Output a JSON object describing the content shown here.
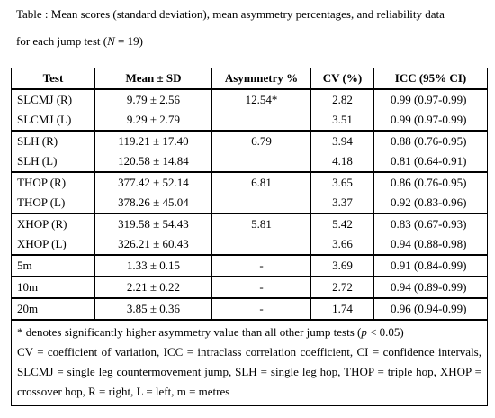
{
  "caption": {
    "line1": "Table : Mean scores (standard deviation), mean asymmetry percentages, and reliability data",
    "line2_prefix": "for each jump test (",
    "n": "N",
    "line2_suffix": " = 19)"
  },
  "table": {
    "header": [
      "Test",
      "Mean ± SD",
      "Asymmetry %",
      "CV (%)",
      "ICC (95% CI)"
    ],
    "rows": [
      [
        "SLCMJ (R)",
        "9.79 ± 2.56",
        "12.54*",
        "2.82",
        "0.99 (0.97-0.99)"
      ],
      [
        "SLCMJ (L)",
        "9.29 ± 2.79",
        null,
        "3.51",
        "0.99 (0.97-0.99)"
      ],
      [
        "SLH (R)",
        "119.21 ± 17.40",
        "6.79",
        "3.94",
        "0.88 (0.76-0.95)"
      ],
      [
        "SLH (L)",
        "120.58 ± 14.84",
        null,
        "4.18",
        "0.81 (0.64-0.91)"
      ],
      [
        "THOP (R)",
        "377.42 ± 52.14",
        "6.81",
        "3.65",
        "0.86 (0.76-0.95)"
      ],
      [
        "THOP (L)",
        "378.26 ± 45.04",
        null,
        "3.37",
        "0.92 (0.83-0.96)"
      ],
      [
        "XHOP (R)",
        "319.58 ± 54.43",
        "5.81",
        "5.42",
        "0.83 (0.67-0.93)"
      ],
      [
        "XHOP (L)",
        "326.21 ± 60.43",
        null,
        "3.66",
        "0.94 (0.88-0.98)"
      ],
      [
        "5m",
        "1.33 ± 0.15",
        "-",
        "3.69",
        "0.91 (0.84-0.99)"
      ],
      [
        "10m",
        "2.21 ± 0.22",
        "-",
        "2.72",
        "0.94 (0.89-0.99)"
      ],
      [
        "20m",
        "3.85 ± 0.36",
        "-",
        "1.74",
        "0.96 (0.94-0.99)"
      ]
    ]
  },
  "footnotes": {
    "note1_prefix": "* denotes significantly higher asymmetry value than all other jump tests (",
    "note1_p": "p",
    "note1_suffix": " < 0.05)",
    "note2": "CV = coefficient of variation, ICC = intraclass correlation coefficient, CI = confidence intervals, SLCMJ = single leg countermovement jump, SLH = single leg hop, THOP = triple hop, XHOP = crossover hop, R = right, L = left, m = metres"
  }
}
